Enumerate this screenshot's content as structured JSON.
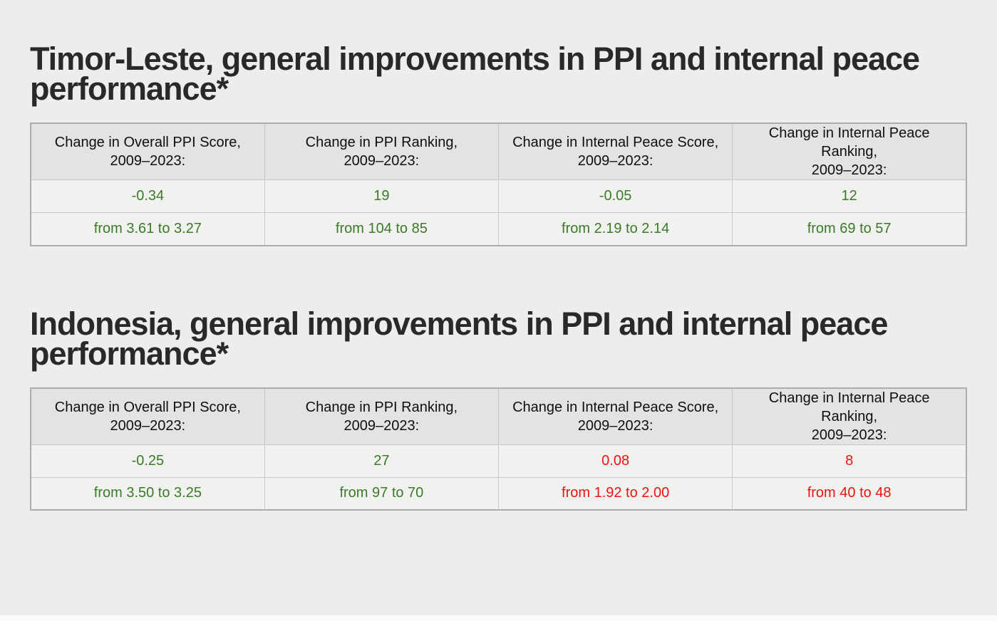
{
  "page": {
    "background_color": "#EDEDEE",
    "footer_strip_color": "#FBFBFB"
  },
  "colors": {
    "title_text": "#2B2927",
    "header_text": "#0F0F0F",
    "improved": "#3A7A28",
    "worsened": "#ED1310",
    "header_cell_bg": "#E3E3E5",
    "data_cell_bg": "#F1F1F0"
  },
  "chart_data": [
    {
      "type": "table",
      "title": "Timor-Leste, general improvements in PPI and internal peace performance*",
      "columns": [
        {
          "header_line1": "Change in Overall PPI Score,",
          "header_line2": "2009–2023:",
          "change": "-0.34",
          "range": "from 3.61 to 3.27",
          "trend": "improved",
          "value_color": "#3A7A28"
        },
        {
          "header_line1": "Change in PPI Ranking,",
          "header_line2": "2009–2023:",
          "change": "19",
          "range": "from 104 to 85",
          "trend": "improved",
          "value_color": "#3A7A28"
        },
        {
          "header_line1": "Change in Internal Peace Score,",
          "header_line2": "2009–2023:",
          "change": "-0.05",
          "range": "from 2.19 to 2.14",
          "trend": "improved",
          "value_color": "#3A7A28"
        },
        {
          "header_line1": "Change in Internal Peace Ranking,",
          "header_line2": "2009–2023:",
          "change": "12",
          "range": "from 69 to 57",
          "trend": "improved",
          "value_color": "#3A7A28"
        }
      ]
    },
    {
      "type": "table",
      "title": "Indonesia, general improvements in PPI and internal peace performance*",
      "columns": [
        {
          "header_line1": "Change in Overall PPI Score,",
          "header_line2": "2009–2023:",
          "change": "-0.25",
          "range": "from 3.50 to 3.25",
          "trend": "improved",
          "value_color": "#3A7A28"
        },
        {
          "header_line1": "Change in PPI Ranking,",
          "header_line2": "2009–2023:",
          "change": "27",
          "range": "from 97 to 70",
          "trend": "improved",
          "value_color": "#3A7A28"
        },
        {
          "header_line1": "Change in Internal Peace Score,",
          "header_line2": "2009–2023:",
          "change": "0.08",
          "range": "from 1.92 to 2.00",
          "trend": "worsened",
          "value_color": "#ED1310"
        },
        {
          "header_line1": "Change in Internal Peace Ranking,",
          "header_line2": "2009–2023:",
          "change": "8",
          "range": "from 40 to 48",
          "trend": "worsened",
          "value_color": "#ED1310"
        }
      ]
    }
  ]
}
